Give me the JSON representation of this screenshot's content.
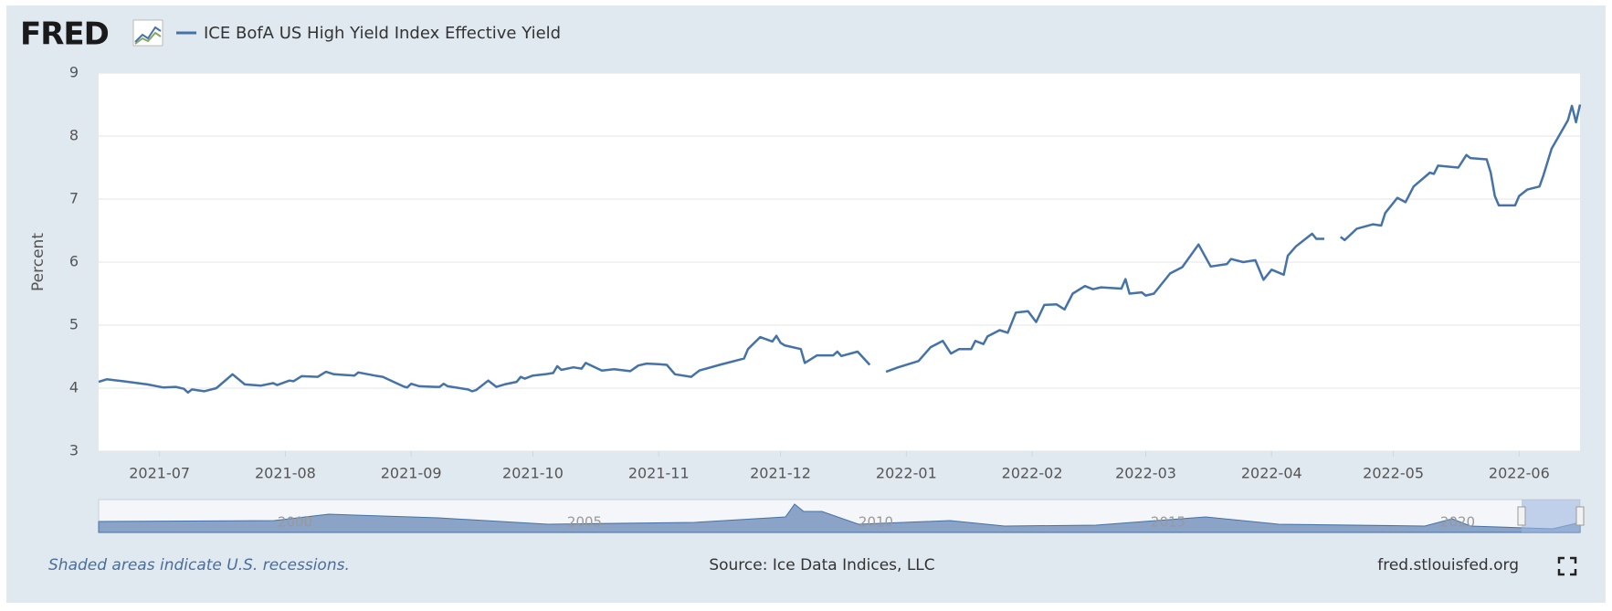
{
  "chart_data": {
    "type": "line",
    "logo": "FRED",
    "y_label": "Percent",
    "series": [
      {
        "name": "ICE BofA US High Yield Index Effective Yield",
        "color": "#4572a7",
        "values": [
          4.1,
          4.14,
          4.11,
          4.06,
          4.01,
          4.02,
          3.99,
          3.93,
          3.98,
          3.95,
          4.0,
          4.22,
          4.06,
          4.04,
          4.08,
          4.05,
          4.12,
          4.11,
          4.19,
          4.18,
          4.22,
          4.26,
          4.22,
          4.2,
          4.25,
          4.2,
          4.18,
          4.12,
          4.03,
          4.01,
          4.07,
          4.03,
          4.02,
          4.02,
          4.07,
          4.03,
          3.98,
          3.95,
          3.97,
          4.12,
          4.02,
          4.06,
          4.1,
          4.18,
          4.15,
          4.2,
          4.22,
          4.24,
          4.35,
          4.29,
          4.33,
          4.31,
          4.4,
          4.37,
          4.28,
          4.3,
          4.27,
          4.36,
          4.39,
          4.38,
          4.37,
          4.22,
          4.18,
          4.28,
          4.37,
          4.47,
          4.62,
          4.81,
          4.74,
          4.83,
          4.72,
          4.68,
          4.62,
          4.4,
          4.52,
          4.52,
          4.58,
          4.51,
          4.58,
          4.37,
          null,
          4.26,
          4.33,
          4.43,
          4.65,
          4.75,
          4.55,
          4.62,
          4.62,
          4.75,
          4.7,
          4.82,
          4.92,
          4.88,
          5.2,
          5.22,
          5.05,
          5.32,
          5.33,
          5.25,
          5.5,
          5.62,
          5.57,
          5.6,
          5.58,
          5.73,
          5.5,
          5.52,
          5.47,
          5.5,
          5.82,
          5.92,
          6.28,
          5.93,
          5.97,
          6.05,
          6.0,
          6.03,
          5.72,
          5.88,
          5.8,
          6.1,
          6.25,
          6.45,
          6.37,
          6.37,
          null,
          6.4,
          6.35,
          6.53,
          6.6,
          6.58,
          6.78,
          7.02,
          6.95,
          7.2,
          7.42,
          7.4,
          7.53,
          7.5,
          7.7,
          7.65,
          7.63,
          7.42,
          7.05,
          6.9,
          6.9,
          7.05,
          7.15,
          7.2,
          7.38,
          7.8,
          8.25,
          8.48,
          8.22,
          8.5
        ]
      }
    ],
    "x": [
      "2021-06-16",
      "2021-06-18",
      "2021-06-22",
      "2021-06-28",
      "2021-07-02",
      "2021-07-05",
      "2021-07-07",
      "2021-07-08",
      "2021-07-09",
      "2021-07-12",
      "2021-07-15",
      "2021-07-19",
      "2021-07-22",
      "2021-07-26",
      "2021-07-29",
      "2021-07-30",
      "2021-08-02",
      "2021-08-03",
      "2021-08-05",
      "2021-08-09",
      "2021-08-10",
      "2021-08-11",
      "2021-08-13",
      "2021-08-18",
      "2021-08-19",
      "2021-08-23",
      "2021-08-25",
      "2021-08-27",
      "2021-08-30",
      "2021-08-31",
      "2021-09-01",
      "2021-09-03",
      "2021-09-07",
      "2021-09-08",
      "2021-09-09",
      "2021-09-10",
      "2021-09-15",
      "2021-09-16",
      "2021-09-17",
      "2021-09-20",
      "2021-09-22",
      "2021-09-24",
      "2021-09-27",
      "2021-09-28",
      "2021-09-29",
      "2021-10-01",
      "2021-10-04",
      "2021-10-06",
      "2021-10-07",
      "2021-10-08",
      "2021-10-11",
      "2021-10-13",
      "2021-10-14",
      "2021-10-15",
      "2021-10-18",
      "2021-10-21",
      "2021-10-25",
      "2021-10-27",
      "2021-10-29",
      "2021-11-01",
      "2021-11-03",
      "2021-11-05",
      "2021-11-09",
      "2021-11-11",
      "2021-11-16",
      "2021-11-22",
      "2021-11-23",
      "2021-11-26",
      "2021-11-29",
      "2021-11-30",
      "2021-12-01",
      "2021-12-02",
      "2021-12-06",
      "2021-12-07",
      "2021-12-10",
      "2021-12-14",
      "2021-12-15",
      "2021-12-16",
      "2021-12-20",
      "2021-12-23",
      "2021-12-24",
      "2021-12-27",
      "2021-12-30",
      "2022-01-04",
      "2022-01-07",
      "2022-01-10",
      "2022-01-12",
      "2022-01-14",
      "2022-01-17",
      "2022-01-18",
      "2022-01-20",
      "2022-01-21",
      "2022-01-24",
      "2022-01-26",
      "2022-01-28",
      "2022-01-31",
      "2022-02-02",
      "2022-02-04",
      "2022-02-07",
      "2022-02-09",
      "2022-02-11",
      "2022-02-14",
      "2022-02-16",
      "2022-02-18",
      "2022-02-23",
      "2022-02-24",
      "2022-02-25",
      "2022-02-28",
      "2022-03-01",
      "2022-03-03",
      "2022-03-07",
      "2022-03-10",
      "2022-03-14",
      "2022-03-17",
      "2022-03-21",
      "2022-03-22",
      "2022-03-25",
      "2022-03-28",
      "2022-03-30",
      "2022-04-01",
      "2022-04-04",
      "2022-04-05",
      "2022-04-07",
      "2022-04-11",
      "2022-04-12",
      "2022-04-14",
      "2022-04-15",
      "2022-04-18",
      "2022-04-19",
      "2022-04-22",
      "2022-04-26",
      "2022-04-28",
      "2022-04-29",
      "2022-05-02",
      "2022-05-04",
      "2022-05-06",
      "2022-05-10",
      "2022-05-11",
      "2022-05-12",
      "2022-05-17",
      "2022-05-19",
      "2022-05-20",
      "2022-05-24",
      "2022-05-25",
      "2022-05-26",
      "2022-05-27",
      "2022-05-31",
      "2022-06-01",
      "2022-06-03",
      "2022-06-06",
      "2022-06-07",
      "2022-06-09",
      "2022-06-13",
      "2022-06-14",
      "2022-06-15",
      "2022-06-16"
    ],
    "xlim": [
      "2021-06-16",
      "2022-06-16"
    ],
    "xticks": [
      {
        "value": "2021-07-01",
        "label": "2021-07"
      },
      {
        "value": "2021-08-01",
        "label": "2021-08"
      },
      {
        "value": "2021-09-01",
        "label": "2021-09"
      },
      {
        "value": "2021-10-01",
        "label": "2021-10"
      },
      {
        "value": "2021-11-01",
        "label": "2021-11"
      },
      {
        "value": "2021-12-01",
        "label": "2021-12"
      },
      {
        "value": "2022-01-01",
        "label": "2022-01"
      },
      {
        "value": "2022-02-01",
        "label": "2022-02"
      },
      {
        "value": "2022-03-01",
        "label": "2022-03"
      },
      {
        "value": "2022-04-01",
        "label": "2022-04"
      },
      {
        "value": "2022-05-01",
        "label": "2022-05"
      },
      {
        "value": "2022-06-01",
        "label": "2022-06"
      }
    ],
    "ylim": [
      3,
      9
    ],
    "yticks": [
      3,
      4,
      5,
      6,
      7,
      8,
      9
    ],
    "grid": true,
    "navigator_labels": [
      "2000",
      "2005",
      "2010",
      "2015",
      "2020"
    ],
    "note": "Shaded areas indicate U.S. recessions.",
    "source": "Source: Ice Data Indices, LLC",
    "site": "fred.stlouisfed.org"
  }
}
